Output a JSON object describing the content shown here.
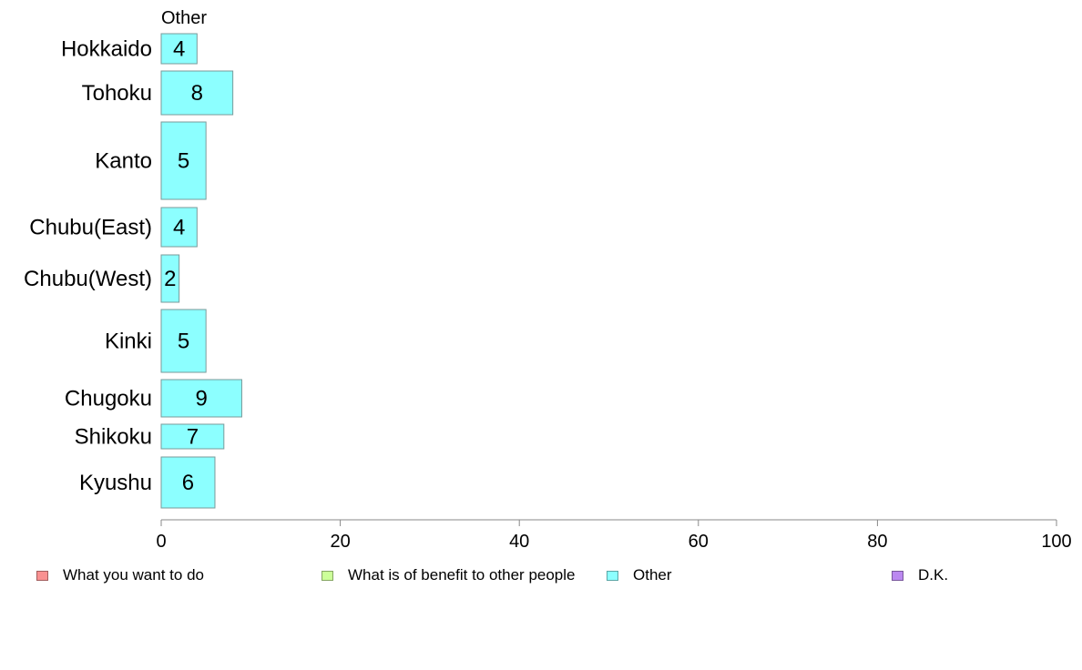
{
  "chart_data": {
    "type": "bar",
    "orientation": "horizontal",
    "series_label": "Other",
    "categories": [
      "Hokkaido",
      "Tohoku",
      "Kanto",
      "Chubu(East)",
      "Chubu(West)",
      "Kinki",
      "Chugoku",
      "Shikoku",
      "Kyushu"
    ],
    "series": [
      {
        "name": "Other",
        "values": [
          4,
          8,
          5,
          4,
          2,
          5,
          9,
          7,
          6
        ]
      }
    ],
    "xlim": [
      0,
      100
    ],
    "xticks": [
      "0",
      "20",
      "40",
      "60",
      "80",
      "100"
    ],
    "grid": false,
    "legend": [
      {
        "label": "What you want to do",
        "color": "#f99191"
      },
      {
        "label": "What is of benefit to other people",
        "color": "#ccff99"
      },
      {
        "label": "Other",
        "color": "#8cffff"
      },
      {
        "label": "D.K.",
        "color": "#bb88f0"
      }
    ],
    "legend_position": "bottom"
  }
}
